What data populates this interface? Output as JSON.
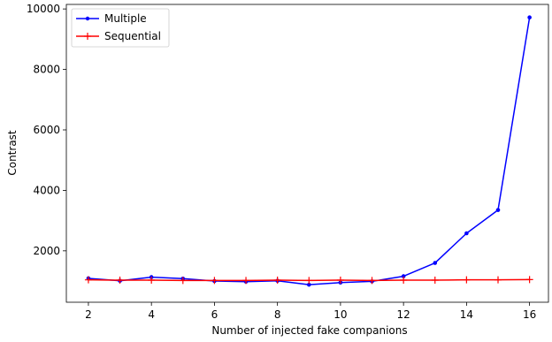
{
  "chart_data": {
    "type": "line",
    "title": "",
    "xlabel": "Number of injected fake companions",
    "ylabel": "Contrast",
    "x": [
      2,
      3,
      4,
      5,
      6,
      7,
      8,
      9,
      10,
      11,
      12,
      13,
      14,
      15,
      16
    ],
    "xlim": [
      1.3,
      16.6
    ],
    "ylim": [
      300,
      10150
    ],
    "xticks": [
      2,
      4,
      6,
      8,
      10,
      12,
      14,
      16
    ],
    "yticks": [
      2000,
      4000,
      6000,
      8000,
      10000
    ],
    "grid": false,
    "legend_position": "top-left",
    "series": [
      {
        "name": "Multiple",
        "color": "#0000ff",
        "marker": "dot",
        "values": [
          1090,
          1010,
          1130,
          1080,
          1000,
          980,
          1010,
          880,
          950,
          990,
          1160,
          1600,
          2580,
          3350,
          9720
        ]
      },
      {
        "name": "Sequential",
        "color": "#ff0000",
        "marker": "plus",
        "values": [
          1040,
          1030,
          1030,
          1020,
          1020,
          1020,
          1030,
          1020,
          1030,
          1020,
          1030,
          1030,
          1040,
          1040,
          1050
        ]
      }
    ]
  }
}
